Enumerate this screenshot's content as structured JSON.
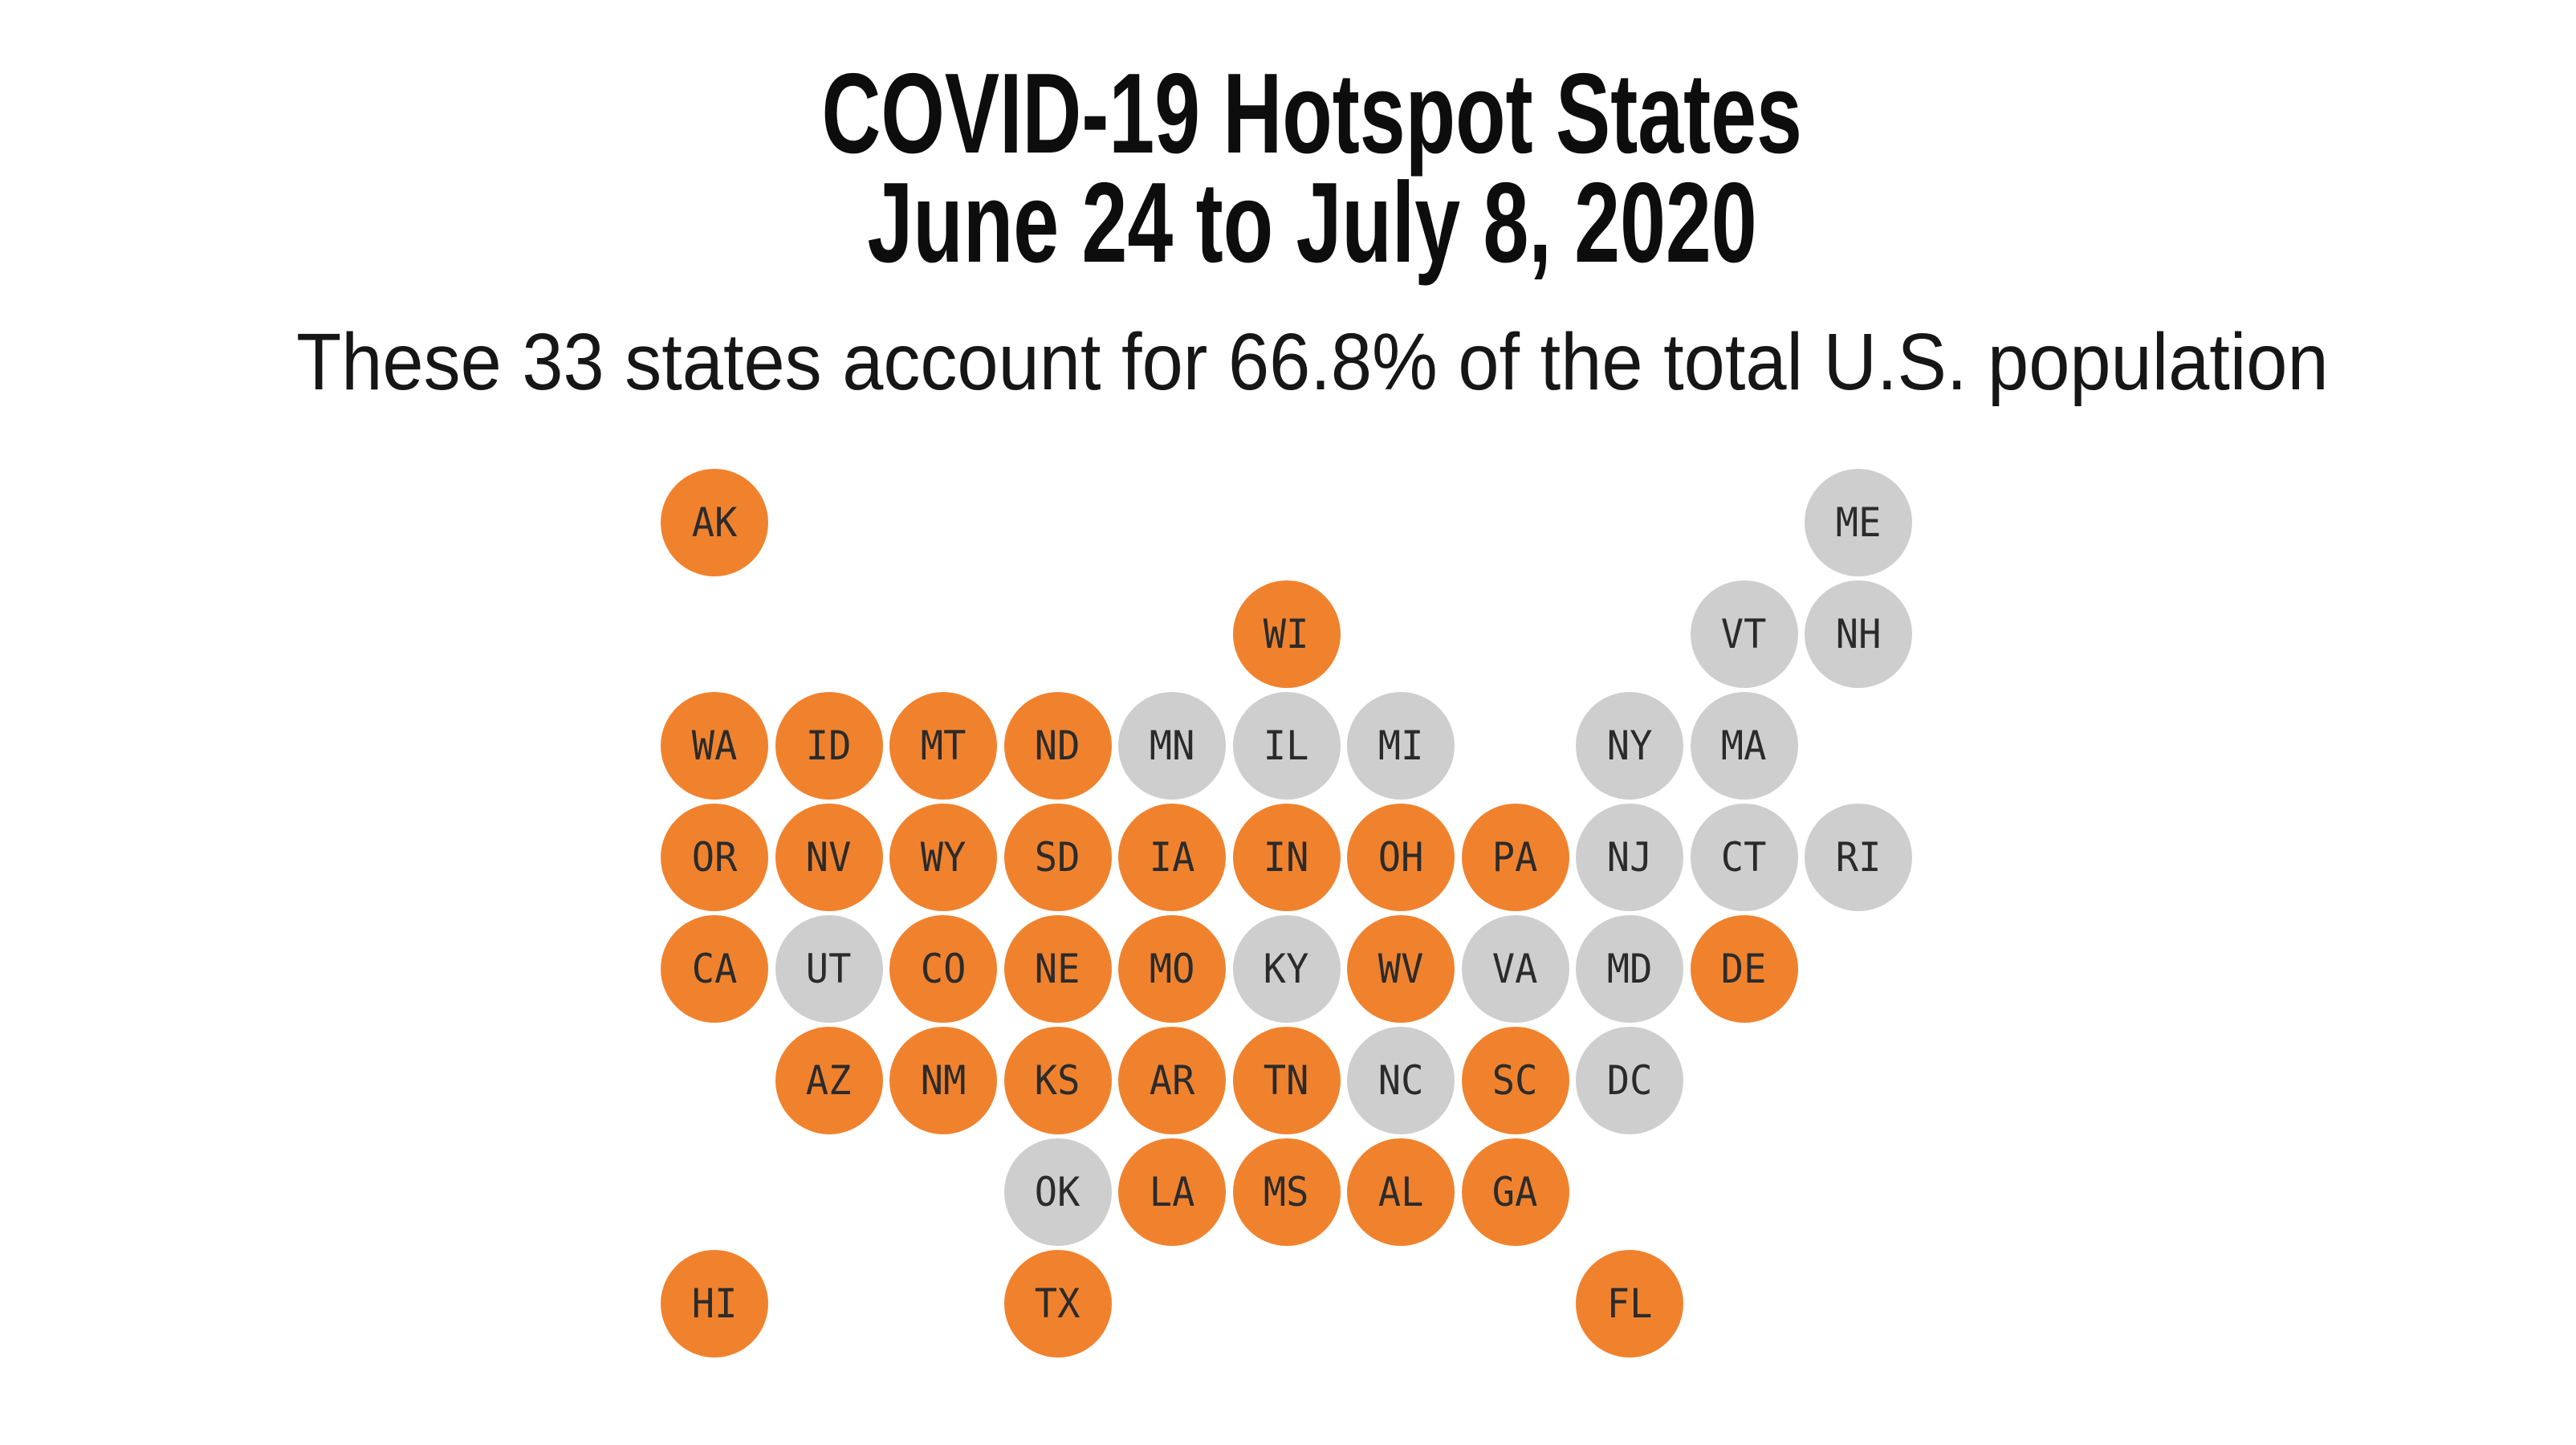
{
  "header": {
    "title_line1": "COVID-19 Hotspot States",
    "title_line2": "June 24 to July 8, 2020",
    "subtitle": "These 33 states account for 66.8% of the total U.S. population"
  },
  "colors": {
    "hotspot": "#F0822E",
    "non_hotspot": "#CECECE",
    "label": "#2B2B2B",
    "title_text": "#0D0D0D",
    "background": "#FFFFFF"
  },
  "chart_data": {
    "type": "heatmap",
    "variant": "us-tile-grid-map",
    "title": "COVID-19 Hotspot States June 24 to July 8, 2020",
    "subtitle": "These 33 states account for 66.8% of the total U.S. population",
    "hotspot_state_count": 33,
    "population_share_pct": 66.8,
    "grid": {
      "columns": 11,
      "rows": 8
    },
    "cells": [
      {
        "code": "AK",
        "col": 1,
        "row": 1,
        "hotspot": true
      },
      {
        "code": "ME",
        "col": 11,
        "row": 1,
        "hotspot": false
      },
      {
        "code": "WI",
        "col": 6,
        "row": 2,
        "hotspot": true
      },
      {
        "code": "VT",
        "col": 10,
        "row": 2,
        "hotspot": false
      },
      {
        "code": "NH",
        "col": 11,
        "row": 2,
        "hotspot": false
      },
      {
        "code": "WA",
        "col": 1,
        "row": 3,
        "hotspot": true
      },
      {
        "code": "ID",
        "col": 2,
        "row": 3,
        "hotspot": true
      },
      {
        "code": "MT",
        "col": 3,
        "row": 3,
        "hotspot": true
      },
      {
        "code": "ND",
        "col": 4,
        "row": 3,
        "hotspot": true
      },
      {
        "code": "MN",
        "col": 5,
        "row": 3,
        "hotspot": false
      },
      {
        "code": "IL",
        "col": 6,
        "row": 3,
        "hotspot": false
      },
      {
        "code": "MI",
        "col": 7,
        "row": 3,
        "hotspot": false
      },
      {
        "code": "NY",
        "col": 9,
        "row": 3,
        "hotspot": false
      },
      {
        "code": "MA",
        "col": 10,
        "row": 3,
        "hotspot": false
      },
      {
        "code": "OR",
        "col": 1,
        "row": 4,
        "hotspot": true
      },
      {
        "code": "NV",
        "col": 2,
        "row": 4,
        "hotspot": true
      },
      {
        "code": "WY",
        "col": 3,
        "row": 4,
        "hotspot": true
      },
      {
        "code": "SD",
        "col": 4,
        "row": 4,
        "hotspot": true
      },
      {
        "code": "IA",
        "col": 5,
        "row": 4,
        "hotspot": true
      },
      {
        "code": "IN",
        "col": 6,
        "row": 4,
        "hotspot": true
      },
      {
        "code": "OH",
        "col": 7,
        "row": 4,
        "hotspot": true
      },
      {
        "code": "PA",
        "col": 8,
        "row": 4,
        "hotspot": true
      },
      {
        "code": "NJ",
        "col": 9,
        "row": 4,
        "hotspot": false
      },
      {
        "code": "CT",
        "col": 10,
        "row": 4,
        "hotspot": false
      },
      {
        "code": "RI",
        "col": 11,
        "row": 4,
        "hotspot": false
      },
      {
        "code": "CA",
        "col": 1,
        "row": 5,
        "hotspot": true
      },
      {
        "code": "UT",
        "col": 2,
        "row": 5,
        "hotspot": false
      },
      {
        "code": "CO",
        "col": 3,
        "row": 5,
        "hotspot": true
      },
      {
        "code": "NE",
        "col": 4,
        "row": 5,
        "hotspot": true
      },
      {
        "code": "MO",
        "col": 5,
        "row": 5,
        "hotspot": true
      },
      {
        "code": "KY",
        "col": 6,
        "row": 5,
        "hotspot": false
      },
      {
        "code": "WV",
        "col": 7,
        "row": 5,
        "hotspot": true
      },
      {
        "code": "VA",
        "col": 8,
        "row": 5,
        "hotspot": false
      },
      {
        "code": "MD",
        "col": 9,
        "row": 5,
        "hotspot": false
      },
      {
        "code": "DE",
        "col": 10,
        "row": 5,
        "hotspot": true
      },
      {
        "code": "AZ",
        "col": 2,
        "row": 6,
        "hotspot": true
      },
      {
        "code": "NM",
        "col": 3,
        "row": 6,
        "hotspot": true
      },
      {
        "code": "KS",
        "col": 4,
        "row": 6,
        "hotspot": true
      },
      {
        "code": "AR",
        "col": 5,
        "row": 6,
        "hotspot": true
      },
      {
        "code": "TN",
        "col": 6,
        "row": 6,
        "hotspot": true
      },
      {
        "code": "NC",
        "col": 7,
        "row": 6,
        "hotspot": false
      },
      {
        "code": "SC",
        "col": 8,
        "row": 6,
        "hotspot": true
      },
      {
        "code": "DC",
        "col": 9,
        "row": 6,
        "hotspot": false
      },
      {
        "code": "OK",
        "col": 4,
        "row": 7,
        "hotspot": false
      },
      {
        "code": "LA",
        "col": 5,
        "row": 7,
        "hotspot": true
      },
      {
        "code": "MS",
        "col": 6,
        "row": 7,
        "hotspot": true
      },
      {
        "code": "AL",
        "col": 7,
        "row": 7,
        "hotspot": true
      },
      {
        "code": "GA",
        "col": 8,
        "row": 7,
        "hotspot": true
      },
      {
        "code": "HI",
        "col": 1,
        "row": 8,
        "hotspot": true
      },
      {
        "code": "TX",
        "col": 4,
        "row": 8,
        "hotspot": true
      },
      {
        "code": "FL",
        "col": 9,
        "row": 8,
        "hotspot": true
      }
    ]
  }
}
